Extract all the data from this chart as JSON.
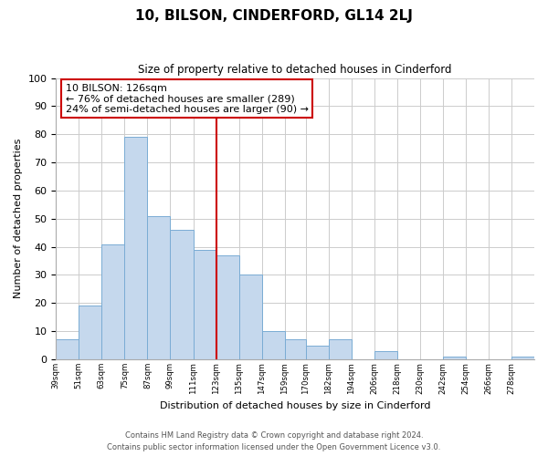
{
  "title": "10, BILSON, CINDERFORD, GL14 2LJ",
  "subtitle": "Size of property relative to detached houses in Cinderford",
  "xlabel": "Distribution of detached houses by size in Cinderford",
  "ylabel": "Number of detached properties",
  "bar_color": "#c5d8ed",
  "bar_edge_color": "#7aacd4",
  "bin_labels": [
    "39sqm",
    "51sqm",
    "63sqm",
    "75sqm",
    "87sqm",
    "99sqm",
    "111sqm",
    "123sqm",
    "135sqm",
    "147sqm",
    "159sqm",
    "170sqm",
    "182sqm",
    "194sqm",
    "206sqm",
    "218sqm",
    "230sqm",
    "242sqm",
    "254sqm",
    "266sqm",
    "278sqm"
  ],
  "bar_heights": [
    7,
    19,
    41,
    79,
    51,
    46,
    39,
    37,
    30,
    10,
    7,
    5,
    7,
    0,
    3,
    0,
    0,
    1,
    0,
    0,
    1
  ],
  "ylim": [
    0,
    100
  ],
  "yticks": [
    0,
    10,
    20,
    30,
    40,
    50,
    60,
    70,
    80,
    90,
    100
  ],
  "annotation_box_text": "10 BILSON: 126sqm\n← 76% of detached houses are smaller (289)\n24% of semi-detached houses are larger (90) →",
  "bin_edges": [
    39,
    51,
    63,
    75,
    87,
    99,
    111,
    123,
    135,
    147,
    159,
    170,
    182,
    194,
    206,
    218,
    230,
    242,
    254,
    266,
    278,
    290
  ],
  "grid_color": "#cccccc",
  "footer_line1": "Contains HM Land Registry data © Crown copyright and database right 2024.",
  "footer_line2": "Contains public sector information licensed under the Open Government Licence v3.0.",
  "box_line_color": "#cc0000",
  "vline_color": "#cc0000",
  "vline_x": 123
}
